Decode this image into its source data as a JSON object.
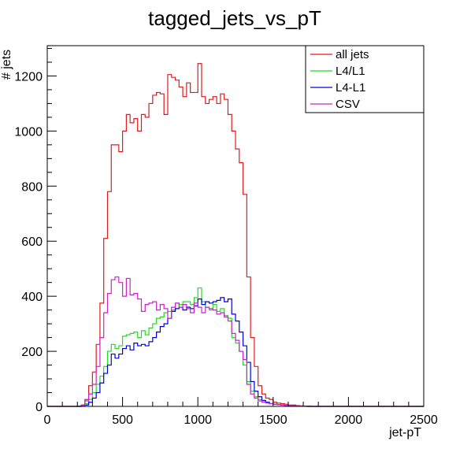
{
  "chart_data": {
    "type": "histogram",
    "title": "tagged_jets_vs_pT",
    "xlabel": "jet-pT",
    "ylabel": "# jets",
    "xlim": [
      0,
      2500
    ],
    "ylim": [
      0,
      1310
    ],
    "bin_width": 25,
    "x_start": 0,
    "x_ticks": [
      0,
      500,
      1000,
      1500,
      2000,
      2500
    ],
    "y_ticks": [
      0,
      200,
      400,
      600,
      800,
      1000,
      1200
    ],
    "legend_position": "top-right",
    "grid": false,
    "series": [
      {
        "name": "all jets",
        "color": "#e31a1c",
        "values": [
          0,
          0,
          0,
          0,
          0,
          0,
          0,
          0,
          1,
          5,
          25,
          75,
          125,
          225,
          375,
          610,
          780,
          950,
          950,
          925,
          1000,
          1060,
          1030,
          1045,
          1000,
          1060,
          1050,
          1100,
          1130,
          1140,
          1135,
          1060,
          1205,
          1195,
          1185,
          1160,
          1125,
          1175,
          1140,
          1140,
          1245,
          1125,
          1100,
          1115,
          1125,
          1100,
          1135,
          1115,
          1060,
          1000,
          935,
          885,
          770,
          470,
          250,
          145,
          75,
          45,
          30,
          25,
          15,
          12,
          10,
          8,
          5,
          5,
          3,
          2,
          1,
          1,
          0,
          0,
          0,
          0,
          0,
          0,
          0,
          0,
          0,
          0,
          0,
          0,
          0,
          0,
          0,
          0,
          0,
          0,
          0,
          0,
          0,
          0,
          0,
          0,
          0,
          0,
          0,
          0,
          0,
          0
        ]
      },
      {
        "name": "L4/L1",
        "color": "#22dd22",
        "values": [
          0,
          0,
          0,
          0,
          0,
          0,
          0,
          0,
          0,
          2,
          10,
          25,
          50,
          80,
          110,
          145,
          200,
          225,
          210,
          220,
          255,
          260,
          265,
          270,
          250,
          275,
          260,
          285,
          300,
          320,
          325,
          340,
          345,
          350,
          375,
          370,
          380,
          380,
          370,
          395,
          430,
          380,
          360,
          350,
          370,
          345,
          355,
          330,
          320,
          250,
          230,
          200,
          150,
          90,
          55,
          35,
          25,
          20,
          15,
          10,
          8,
          6,
          5,
          4,
          3,
          2,
          2,
          1,
          1,
          0,
          0,
          0,
          0,
          0,
          0,
          0,
          0,
          0,
          0,
          0,
          0,
          0,
          0,
          0,
          0,
          0,
          0,
          0,
          0,
          0,
          0,
          0,
          0,
          0,
          0,
          0,
          0,
          0,
          0,
          0
        ]
      },
      {
        "name": "L4-L1",
        "color": "#0000dd",
        "values": [
          0,
          0,
          0,
          0,
          0,
          0,
          0,
          0,
          0,
          1,
          5,
          15,
          30,
          50,
          85,
          120,
          150,
          190,
          175,
          190,
          210,
          220,
          205,
          230,
          220,
          225,
          220,
          235,
          250,
          270,
          290,
          300,
          320,
          345,
          355,
          360,
          350,
          360,
          355,
          365,
          390,
          370,
          380,
          375,
          380,
          385,
          395,
          380,
          390,
          335,
          310,
          270,
          220,
          160,
          90,
          55,
          35,
          22,
          15,
          10,
          8,
          6,
          5,
          4,
          3,
          2,
          2,
          1,
          1,
          0,
          0,
          0,
          0,
          0,
          0,
          0,
          0,
          0,
          0,
          0,
          0,
          0,
          0,
          0,
          0,
          0,
          0,
          0,
          0,
          0,
          0,
          0,
          0,
          0,
          0,
          0,
          0,
          0,
          0,
          0
        ]
      },
      {
        "name": "CSV",
        "color": "#cc22cc",
        "values": [
          0,
          0,
          0,
          0,
          0,
          0,
          0,
          0,
          0,
          5,
          20,
          45,
          80,
          145,
          250,
          340,
          410,
          460,
          470,
          450,
          400,
          465,
          405,
          410,
          390,
          345,
          370,
          375,
          380,
          350,
          370,
          355,
          320,
          360,
          375,
          360,
          370,
          355,
          340,
          375,
          360,
          340,
          360,
          355,
          350,
          335,
          340,
          325,
          310,
          265,
          240,
          200,
          170,
          80,
          45,
          30,
          20,
          15,
          12,
          10,
          8,
          6,
          5,
          4,
          3,
          2,
          2,
          1,
          1,
          0,
          0,
          0,
          0,
          0,
          0,
          0,
          0,
          0,
          0,
          0,
          0,
          0,
          0,
          0,
          0,
          0,
          0,
          0,
          0,
          0,
          0,
          0,
          0,
          0,
          0,
          0,
          0,
          0,
          0,
          0
        ]
      }
    ]
  }
}
